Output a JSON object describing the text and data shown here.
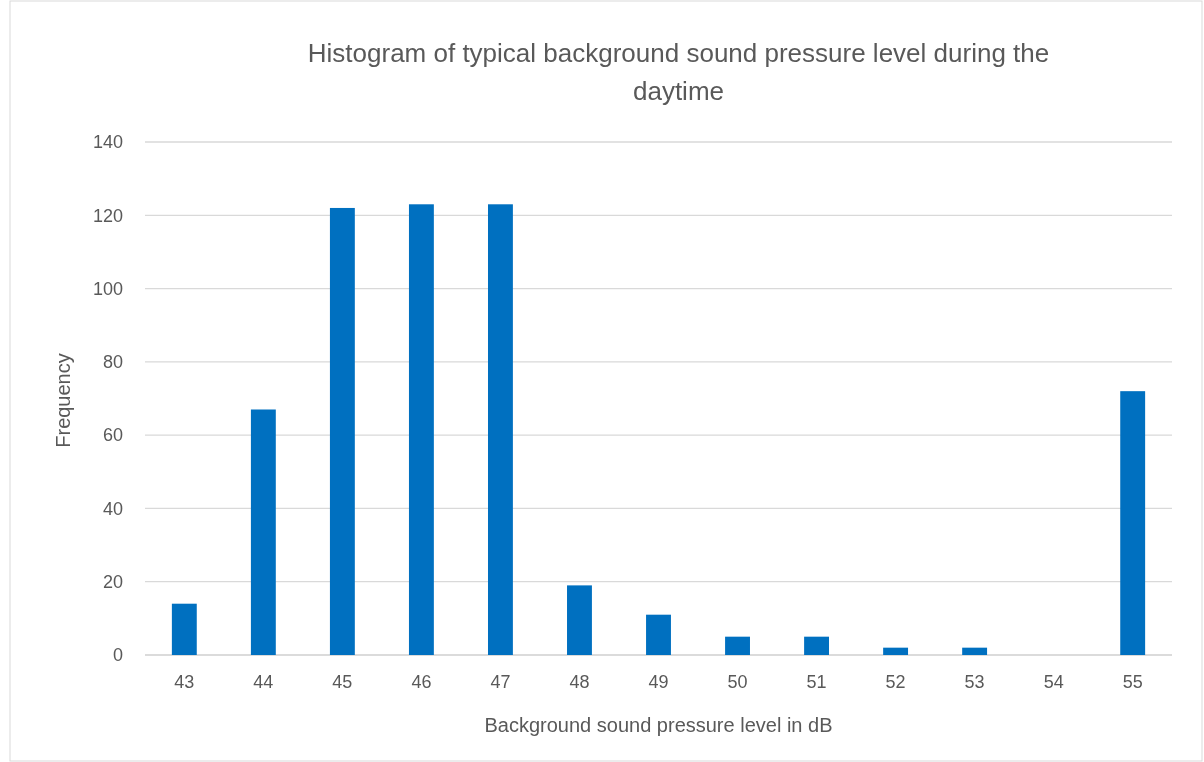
{
  "chart_data": {
    "type": "bar",
    "title": "Histogram of typical background sound pressure level during the daytime",
    "xlabel": "Background sound pressure level in dB",
    "ylabel": "Frequency",
    "categories": [
      "43",
      "44",
      "45",
      "46",
      "47",
      "48",
      "49",
      "50",
      "51",
      "52",
      "53",
      "54",
      "55"
    ],
    "values": [
      14,
      67,
      122,
      123,
      123,
      19,
      11,
      5,
      5,
      2,
      2,
      0,
      72
    ],
    "color": "#0070c0",
    "ylim": [
      0,
      140
    ],
    "yticks": [
      0,
      20,
      40,
      60,
      80,
      100,
      120,
      140
    ],
    "grid": "y"
  }
}
